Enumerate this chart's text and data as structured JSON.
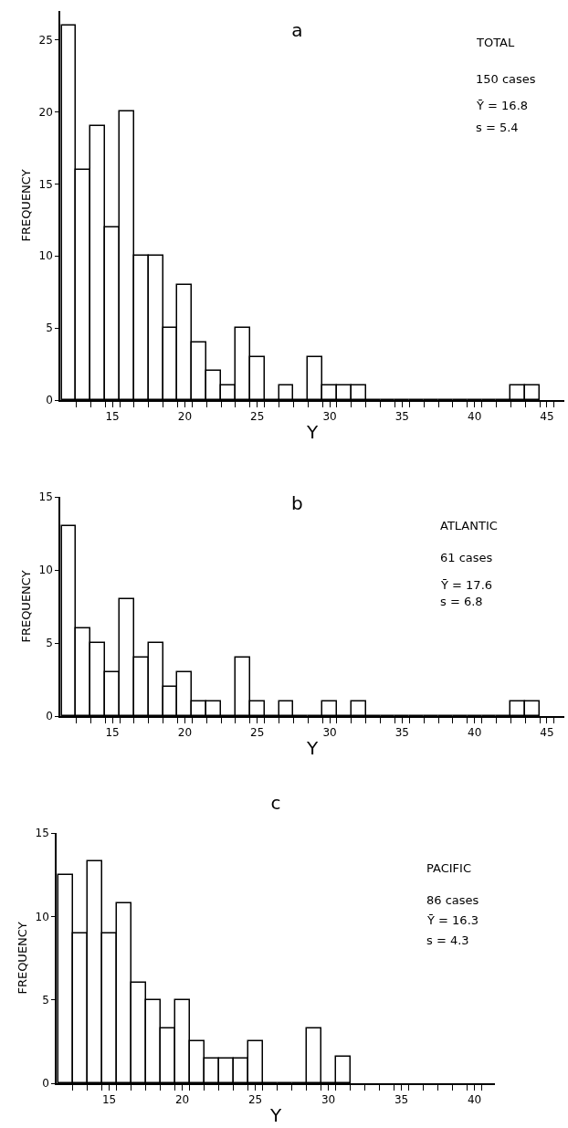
{
  "chart_data": [
    {
      "type": "histogram",
      "title": "a",
      "xlabel": "Y",
      "ylabel": "FREQUENCY",
      "annotations": [
        "TOTAL",
        "150 cases",
        "Ȳ = 16.8",
        "s = 5.4"
      ],
      "bins": [
        11.5,
        12.5,
        13.5,
        14.5,
        15.5,
        16.5,
        17.5,
        18.5,
        19.5,
        20.5,
        21.5,
        22.5,
        23.5,
        24.5,
        25.5,
        26.5,
        27.5,
        28.5,
        29.5,
        30.5,
        31.5,
        32.5,
        33.5,
        34.5,
        35.5,
        36.5,
        37.5,
        38.5,
        39.5,
        40.5,
        41.5,
        42.5,
        43.5,
        44.5
      ],
      "values": [
        26,
        16,
        19,
        12,
        20,
        10,
        10,
        5,
        8,
        4,
        2,
        1,
        5,
        3,
        0,
        1,
        0,
        3,
        1,
        1,
        1,
        0,
        0,
        0,
        0,
        0,
        0,
        0,
        0,
        0,
        0,
        1,
        1
      ],
      "color": "#000000",
      "xlim": [
        11.4,
        46.2
      ],
      "ylim": [
        0,
        27
      ],
      "xticks": [
        15,
        20,
        25,
        30,
        35,
        40,
        45,
        {
          "value": 12.5,
          "label": null
        },
        {
          "value": 13.5,
          "label": null
        },
        {
          "value": 14.5,
          "label": null
        },
        {
          "value": 15.5,
          "label": null
        },
        {
          "value": 16.5,
          "label": null
        },
        {
          "value": 17.5,
          "label": null
        },
        {
          "value": 18.5,
          "label": null
        },
        {
          "value": 19.5,
          "label": null
        },
        {
          "value": 20.5,
          "label": null
        },
        {
          "value": 21.5,
          "label": null
        },
        {
          "value": 22.5,
          "label": null
        },
        {
          "value": 23.5,
          "label": null
        },
        {
          "value": 24.5,
          "label": null
        },
        {
          "value": 25.5,
          "label": null
        },
        {
          "value": 26.5,
          "label": null
        },
        {
          "value": 27.5,
          "label": null
        },
        {
          "value": 28.5,
          "label": null
        },
        {
          "value": 29.5,
          "label": null
        },
        {
          "value": 30.5,
          "label": null
        },
        {
          "value": 31.5,
          "label": null
        },
        {
          "value": 32.5,
          "label": null
        },
        {
          "value": 33.5,
          "label": null
        },
        {
          "value": 34.5,
          "label": null
        },
        {
          "value": 35.5,
          "label": null
        },
        {
          "value": 36.5,
          "label": null
        },
        {
          "value": 37.5,
          "label": null
        },
        {
          "value": 38.5,
          "label": null
        },
        {
          "value": 39.5,
          "label": null
        },
        {
          "value": 40.5,
          "label": null
        },
        {
          "value": 41.5,
          "label": null
        },
        {
          "value": 42.5,
          "label": null
        },
        {
          "value": 43.5,
          "label": null
        },
        {
          "value": 44.5,
          "label": null
        },
        {
          "value": 45.5,
          "label": null
        }
      ],
      "yticks": [
        0,
        5,
        10,
        15,
        20,
        25
      ],
      "grid": false
    },
    {
      "type": "histogram",
      "title": "b",
      "xlabel": "Y",
      "ylabel": "FREQUENCY",
      "annotations": [
        "ATLANTIC",
        "61 cases",
        "Ȳ = 17.6",
        "s = 6.8"
      ],
      "bins": [
        11.5,
        12.5,
        13.5,
        14.5,
        15.5,
        16.5,
        17.5,
        18.5,
        19.5,
        20.5,
        21.5,
        22.5,
        23.5,
        24.5,
        25.5,
        26.5,
        27.5,
        28.5,
        29.5,
        30.5,
        31.5,
        32.5,
        33.5,
        34.5,
        35.5,
        36.5,
        37.5,
        38.5,
        39.5,
        40.5,
        41.5,
        42.5,
        43.5,
        44.5
      ],
      "values": [
        13,
        6,
        5,
        3,
        8,
        4,
        5,
        2,
        3,
        1,
        1,
        0,
        4,
        1,
        0,
        1,
        0,
        0,
        1,
        0,
        1,
        0,
        0,
        0,
        0,
        0,
        0,
        0,
        0,
        0,
        0,
        1,
        1
      ],
      "color": "#000000",
      "xlim": [
        11.4,
        46.2
      ],
      "ylim": [
        0,
        15
      ],
      "xticks": [
        15,
        20,
        25,
        30,
        35,
        40,
        45,
        {
          "value": 12.5,
          "label": null
        },
        {
          "value": 13.5,
          "label": null
        },
        {
          "value": 14.5,
          "label": null
        },
        {
          "value": 15.5,
          "label": null
        },
        {
          "value": 16.5,
          "label": null
        },
        {
          "value": 17.5,
          "label": null
        },
        {
          "value": 18.5,
          "label": null
        },
        {
          "value": 19.5,
          "label": null
        },
        {
          "value": 20.5,
          "label": null
        },
        {
          "value": 21.5,
          "label": null
        },
        {
          "value": 22.5,
          "label": null
        },
        {
          "value": 23.5,
          "label": null
        },
        {
          "value": 24.5,
          "label": null
        },
        {
          "value": 25.5,
          "label": null
        },
        {
          "value": 26.5,
          "label": null
        },
        {
          "value": 27.5,
          "label": null
        },
        {
          "value": 28.5,
          "label": null
        },
        {
          "value": 29.5,
          "label": null
        },
        {
          "value": 30.5,
          "label": null
        },
        {
          "value": 31.5,
          "label": null
        },
        {
          "value": 32.5,
          "label": null
        },
        {
          "value": 33.5,
          "label": null
        },
        {
          "value": 34.5,
          "label": null
        },
        {
          "value": 35.5,
          "label": null
        },
        {
          "value": 36.5,
          "label": null
        },
        {
          "value": 37.5,
          "label": null
        },
        {
          "value": 38.5,
          "label": null
        },
        {
          "value": 39.5,
          "label": null
        },
        {
          "value": 40.5,
          "label": null
        },
        {
          "value": 41.5,
          "label": null
        },
        {
          "value": 42.5,
          "label": null
        },
        {
          "value": 43.5,
          "label": null
        },
        {
          "value": 44.5,
          "label": null
        },
        {
          "value": 45.5,
          "label": null
        }
      ],
      "yticks": [
        0,
        5,
        10,
        15
      ],
      "grid": false
    },
    {
      "type": "histogram",
      "title": "c",
      "xlabel": "Y",
      "ylabel": "FREQUENCY",
      "annotations": [
        "PACIFIC",
        "86 cases",
        "Ȳ = 16.3",
        "s = 4.3"
      ],
      "bins": [
        11.5,
        12.5,
        13.5,
        14.5,
        15.5,
        16.5,
        17.5,
        18.5,
        19.5,
        20.5,
        21.5,
        22.5,
        23.5,
        24.5,
        25.5,
        26.5,
        27.5,
        28.5,
        29.5,
        30.5,
        31.5
      ],
      "values": [
        12.5,
        9,
        13.3,
        9,
        10.8,
        6,
        5,
        3.3,
        5,
        2.5,
        1.5,
        1.5,
        1.5,
        2.5,
        0,
        0,
        0,
        3.3,
        0,
        1.6
      ],
      "color": "#000000",
      "xlim": [
        11.4,
        41.4
      ],
      "ylim": [
        0,
        15
      ],
      "xticks": [
        15,
        20,
        25,
        30,
        35,
        40,
        {
          "value": 12.5,
          "label": null
        },
        {
          "value": 13.5,
          "label": null
        },
        {
          "value": 14.5,
          "label": null
        },
        {
          "value": 15.5,
          "label": null
        },
        {
          "value": 16.5,
          "label": null
        },
        {
          "value": 17.5,
          "label": null
        },
        {
          "value": 18.5,
          "label": null
        },
        {
          "value": 19.5,
          "label": null
        },
        {
          "value": 20.5,
          "label": null
        },
        {
          "value": 21.5,
          "label": null
        },
        {
          "value": 22.5,
          "label": null
        },
        {
          "value": 23.5,
          "label": null
        },
        {
          "value": 24.5,
          "label": null
        },
        {
          "value": 25.5,
          "label": null
        },
        {
          "value": 26.5,
          "label": null
        },
        {
          "value": 27.5,
          "label": null
        },
        {
          "value": 28.5,
          "label": null
        },
        {
          "value": 29.5,
          "label": null
        },
        {
          "value": 30.5,
          "label": null
        },
        {
          "value": 31.5,
          "label": null
        },
        {
          "value": 32.5,
          "label": null
        },
        {
          "value": 33.5,
          "label": null
        },
        {
          "value": 34.5,
          "label": null
        },
        {
          "value": 35.5,
          "label": null
        },
        {
          "value": 36.5,
          "label": null
        },
        {
          "value": 37.5,
          "label": null
        },
        {
          "value": 38.5,
          "label": null
        },
        {
          "value": 39.5,
          "label": null
        },
        {
          "value": 40.5,
          "label": null
        }
      ],
      "yticks": [
        0,
        5,
        10,
        15
      ],
      "grid": false
    }
  ]
}
